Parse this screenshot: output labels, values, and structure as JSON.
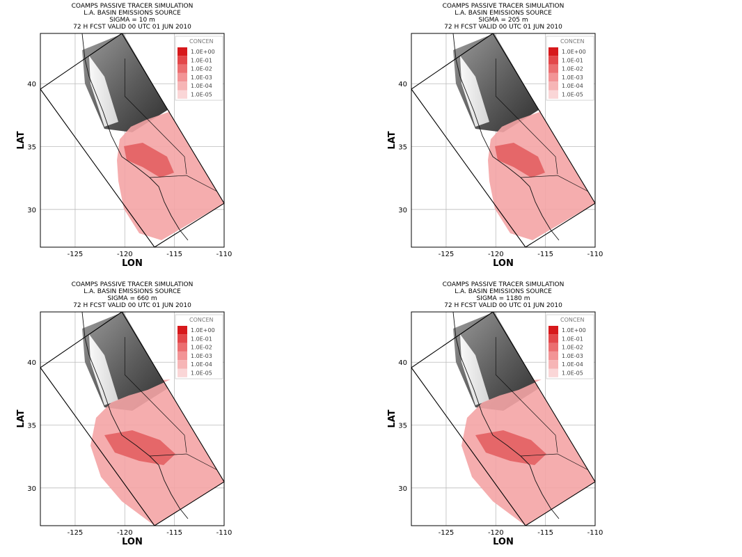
{
  "panels": [
    {
      "title_lines": [
        "COAMPS PASSIVE TRACER SIMULATION",
        "L.A. BASIN EMISSIONS SOURCE",
        "SIGMA = 10 m",
        "72 H FCST VALID 00 UTC 01 JUN 2010"
      ],
      "sigma": "10 m",
      "plume_extent": "low",
      "xlabel": "LON",
      "ylabel": "LAT",
      "x_ticks": [
        "-125",
        "-120",
        "-115",
        "-110"
      ],
      "y_ticks": [
        "40",
        "35",
        "30"
      ],
      "legend_title": "CONCEN",
      "legend": [
        "1.0E+00",
        "1.0E-01",
        "1.0E-02",
        "1.0E-03",
        "1.0E-04",
        "1.0E-05"
      ]
    },
    {
      "title_lines": [
        "COAMPS PASSIVE TRACER SIMULATION",
        "L.A. BASIN EMISSIONS SOURCE",
        "SIGMA = 205 m",
        "72 H FCST VALID 00 UTC 01 JUN 2010"
      ],
      "sigma": "205 m",
      "plume_extent": "low",
      "xlabel": "LON",
      "ylabel": "LAT",
      "x_ticks": [
        "-125",
        "-120",
        "-115",
        "-110"
      ],
      "y_ticks": [
        "40",
        "35",
        "30"
      ],
      "legend_title": "CONCEN",
      "legend": [
        "1.0E+00",
        "1.0E-01",
        "1.0E-02",
        "1.0E-03",
        "1.0E-04",
        "1.0E-05"
      ]
    },
    {
      "title_lines": [
        "COAMPS PASSIVE TRACER SIMULATION",
        "L.A. BASIN EMISSIONS SOURCE",
        "SIGMA = 660 m",
        "72 H FCST VALID 00 UTC 01 JUN 2010"
      ],
      "sigma": "660 m",
      "plume_extent": "high",
      "xlabel": "LON",
      "ylabel": "LAT",
      "x_ticks": [
        "-125",
        "-120",
        "-115",
        "-110"
      ],
      "y_ticks": [
        "40",
        "35",
        "30"
      ],
      "legend_title": "CONCEN",
      "legend": [
        "1.0E+00",
        "1.0E-01",
        "1.0E-02",
        "1.0E-03",
        "1.0E-04",
        "1.0E-05"
      ]
    },
    {
      "title_lines": [
        "COAMPS PASSIVE TRACER SIMULATION",
        "L.A. BASIN EMISSIONS SOURCE",
        "SIGMA = 1180 m",
        "72 H FCST VALID 00 UTC 01 JUN 2010"
      ],
      "sigma": "1180 m",
      "plume_extent": "high",
      "xlabel": "LON",
      "ylabel": "LAT",
      "x_ticks": [
        "-125",
        "-120",
        "-115",
        "-110"
      ],
      "y_ticks": [
        "40",
        "35",
        "30"
      ],
      "legend_title": "CONCEN",
      "legend": [
        "1.0E+00",
        "1.0E-01",
        "1.0E-02",
        "1.0E-03",
        "1.0E-04",
        "1.0E-05"
      ]
    }
  ],
  "colors": {
    "legend_swatches": [
      "#d7191c",
      "#e3474a",
      "#eb6e70",
      "#f29496",
      "#f6b5b6",
      "#fad6d7"
    ],
    "plume_base": "#f4a4a5",
    "plume_dark": "#e25a5d",
    "terrain_dark": "#4a4a4a",
    "terrain_light": "#cfcfcf",
    "grid": "#bbbbbb"
  },
  "map_extent": {
    "lon_range": [
      -128.5,
      -110
    ],
    "lat_range": [
      27,
      44
    ]
  }
}
